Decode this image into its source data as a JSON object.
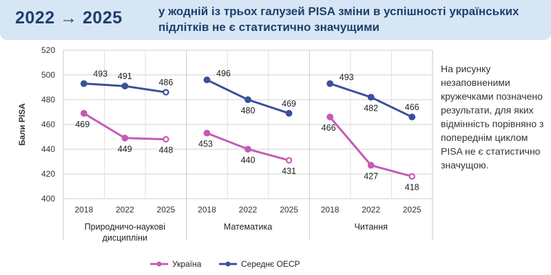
{
  "header": {
    "years": "2022 → 2025",
    "title": "у жодній із трьох галузей PISA зміни в успішності українських підлітків не є статистично значущими"
  },
  "note": "На рисунку незаповненими кружечками позначено результати, для яких відмінність порівняно з попереднім циклом PISA не є статистично значущою.",
  "colors": {
    "ukraine": "#c45bb5",
    "oecd": "#3b4f9b",
    "banner": "#d6e6f5",
    "banner_text": "#1f3f6b"
  },
  "chart_data": {
    "type": "line",
    "ylabel": "Бали PISA",
    "ylim": [
      400,
      520
    ],
    "yticks": [
      400,
      420,
      440,
      460,
      480,
      500,
      520
    ],
    "grid": true,
    "legend_position": "bottom",
    "legend": [
      "Україна",
      "Середнє ОЕСР"
    ],
    "panels": [
      {
        "label": "Природничо-наукові дисципліни",
        "categories": [
          "2018",
          "2022",
          "2025"
        ],
        "series": [
          {
            "name": "Україна",
            "values": [
              469,
              449,
              448
            ],
            "hollow": [
              false,
              false,
              true
            ]
          },
          {
            "name": "Середнє ОЕСР",
            "values": [
              493,
              491,
              486
            ],
            "hollow": [
              false,
              false,
              true
            ]
          }
        ]
      },
      {
        "label": "Математика",
        "categories": [
          "2018",
          "2022",
          "2025"
        ],
        "series": [
          {
            "name": "Україна",
            "values": [
              453,
              440,
              431
            ],
            "hollow": [
              false,
              false,
              true
            ]
          },
          {
            "name": "Середнє ОЕСР",
            "values": [
              496,
              480,
              469
            ],
            "hollow": [
              false,
              false,
              false
            ]
          }
        ]
      },
      {
        "label": "Читання",
        "categories": [
          "2018",
          "2022",
          "2025"
        ],
        "series": [
          {
            "name": "Україна",
            "values": [
              466,
              427,
              418
            ],
            "hollow": [
              false,
              false,
              true
            ]
          },
          {
            "name": "Середнє ОЕСР",
            "values": [
              493,
              482,
              466
            ],
            "hollow": [
              false,
              false,
              false
            ]
          }
        ]
      }
    ]
  }
}
